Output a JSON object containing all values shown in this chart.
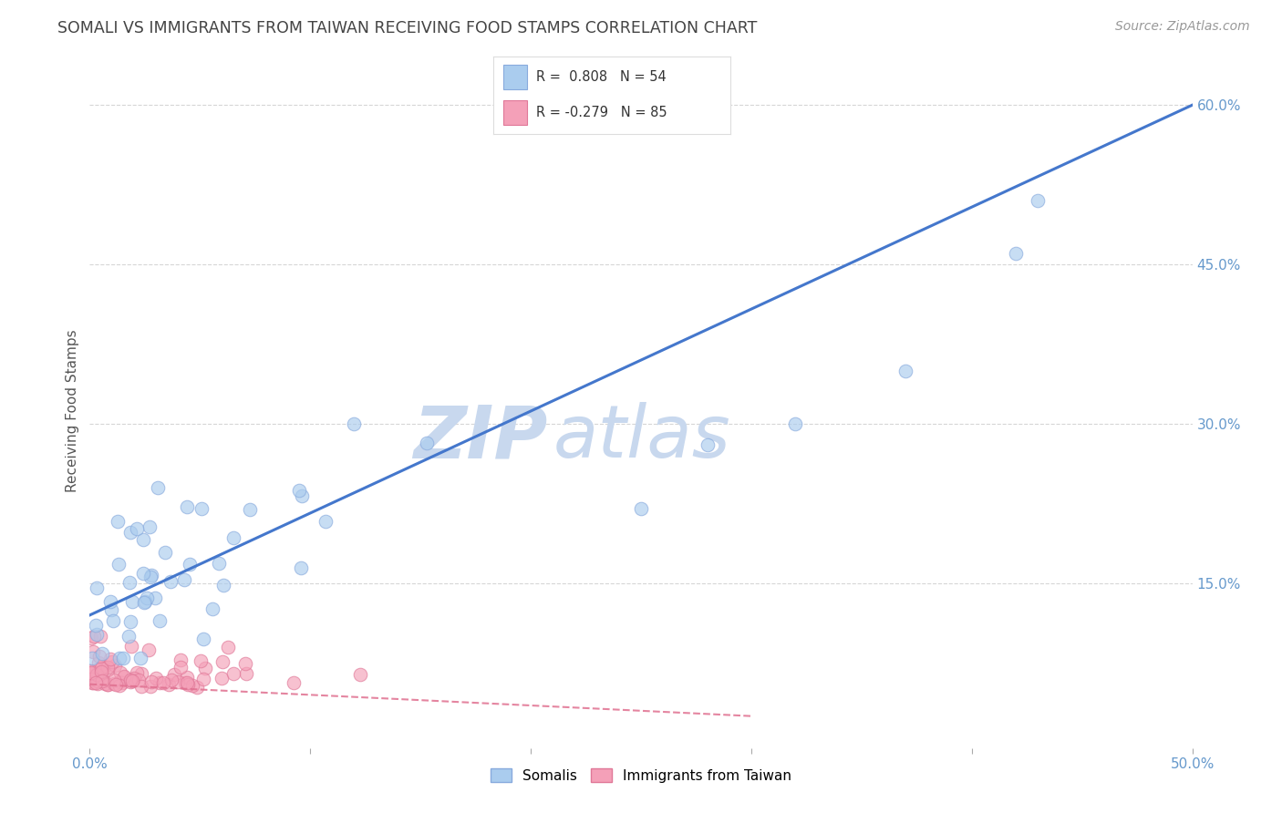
{
  "title": "SOMALI VS IMMIGRANTS FROM TAIWAN RECEIVING FOOD STAMPS CORRELATION CHART",
  "source": "Source: ZipAtlas.com",
  "ylabel": "Receiving Food Stamps",
  "xlim": [
    0.0,
    0.5
  ],
  "ylim": [
    -0.005,
    0.63
  ],
  "yticks_right": [
    0.15,
    0.3,
    0.45,
    0.6
  ],
  "ytick_labels_right": [
    "15.0%",
    "30.0%",
    "45.0%",
    "60.0%"
  ],
  "somali_color": "#aaccee",
  "somali_edge_color": "#88aadd",
  "taiwan_color": "#f4a0b8",
  "taiwan_edge_color": "#e07898",
  "blue_line_color": "#4477cc",
  "pink_line_color": "#e07090",
  "R_somali": 0.808,
  "N_somali": 54,
  "R_taiwan": -0.279,
  "N_taiwan": 85,
  "watermark_zip": "ZIP",
  "watermark_atlas": "atlas",
  "background_color": "#ffffff",
  "grid_color": "#cccccc",
  "title_color": "#444444",
  "axis_color": "#6699cc",
  "legend_somali": "Somalis",
  "legend_taiwan": "Immigrants from Taiwan",
  "blue_line_y0": 0.12,
  "blue_line_y1": 0.6,
  "pink_line_y0": 0.055,
  "pink_line_y1": 0.025,
  "pink_line_x1": 0.3
}
